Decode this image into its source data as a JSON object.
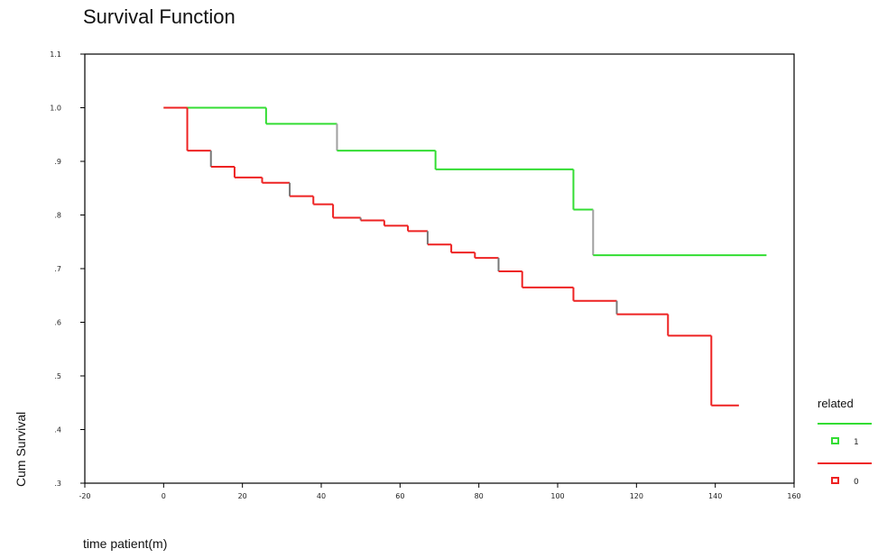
{
  "chart_data": {
    "type": "line",
    "title": "Survival Function",
    "xlabel": "time patient(m)",
    "ylabel": "Cum Survival",
    "xlim": [
      -20,
      160
    ],
    "ylim": [
      0.3,
      1.1
    ],
    "x_ticks": [
      "-20",
      "0",
      "20",
      "40",
      "60",
      "80",
      "100",
      "120",
      "140",
      "160"
    ],
    "y_ticks": [
      ".3",
      ".4",
      ".5",
      ".6",
      ".7",
      ".8",
      ".9",
      "1.0",
      "1.1"
    ],
    "legend": {
      "title": "related",
      "placement": "right"
    },
    "series": [
      {
        "name": "1",
        "color": "#33dd33",
        "censor_color": "#a0a0a0",
        "steps": [
          [
            0,
            1.0
          ],
          [
            26,
            0.97
          ],
          [
            44,
            0.92
          ],
          [
            69,
            0.885
          ],
          [
            104,
            0.81
          ],
          [
            109,
            0.725
          ],
          [
            153,
            0.725
          ]
        ]
      },
      {
        "name": "0",
        "color": "#ee2222",
        "censor_color": "#777777",
        "steps": [
          [
            0,
            1.0
          ],
          [
            6,
            0.92
          ],
          [
            12,
            0.89
          ],
          [
            18,
            0.87
          ],
          [
            25,
            0.86
          ],
          [
            32,
            0.835
          ],
          [
            38,
            0.82
          ],
          [
            43,
            0.795
          ],
          [
            50,
            0.79
          ],
          [
            56,
            0.78
          ],
          [
            62,
            0.77
          ],
          [
            67,
            0.745
          ],
          [
            73,
            0.73
          ],
          [
            79,
            0.72
          ],
          [
            85,
            0.695
          ],
          [
            91,
            0.665
          ],
          [
            104,
            0.64
          ],
          [
            115,
            0.615
          ],
          [
            128,
            0.575
          ],
          [
            139,
            0.445
          ],
          [
            146,
            0.445
          ]
        ]
      }
    ]
  }
}
